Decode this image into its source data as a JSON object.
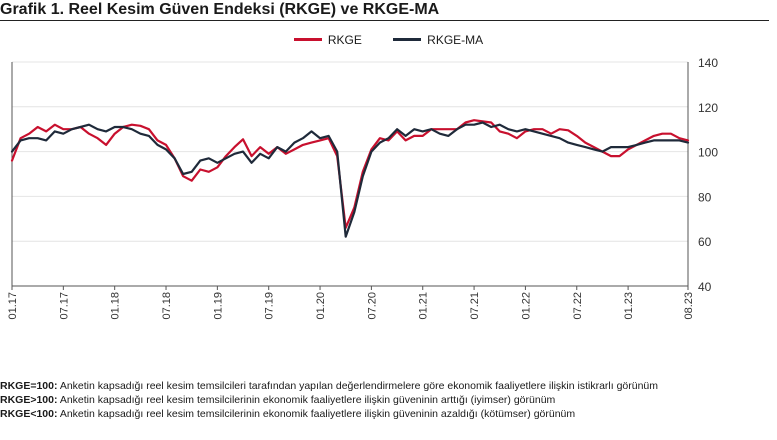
{
  "title": "Grafik 1. Reel Kesim Güven Endeksi (RKGE) ve RKGE-MA",
  "colors": {
    "rkge": "#c8102e",
    "rkge_ma": "#1f2a3a",
    "grid": "#e4e4e4",
    "axis": "#555555"
  },
  "chart_data": {
    "type": "line",
    "title": "Grafik 1. Reel Kesim Güven Endeksi (RKGE) ve RKGE-MA",
    "xlabel": "",
    "ylabel": "",
    "ylim": [
      40,
      140
    ],
    "yticks": [
      40,
      60,
      80,
      100,
      120,
      140
    ],
    "grid": true,
    "legend_position": "top-center",
    "x_tick_labels": [
      "01.17",
      "07.17",
      "01.18",
      "07.18",
      "01.19",
      "07.19",
      "01.20",
      "07.20",
      "01.21",
      "07.21",
      "01.22",
      "07.22",
      "01.23",
      "08.23"
    ],
    "x": [
      "01.17",
      "02.17",
      "03.17",
      "04.17",
      "05.17",
      "06.17",
      "07.17",
      "08.17",
      "09.17",
      "10.17",
      "11.17",
      "12.17",
      "01.18",
      "02.18",
      "03.18",
      "04.18",
      "05.18",
      "06.18",
      "07.18",
      "08.18",
      "09.18",
      "10.18",
      "11.18",
      "12.18",
      "01.19",
      "02.19",
      "03.19",
      "04.19",
      "05.19",
      "06.19",
      "07.19",
      "08.19",
      "09.19",
      "10.19",
      "11.19",
      "12.19",
      "01.20",
      "02.20",
      "03.20",
      "04.20",
      "05.20",
      "06.20",
      "07.20",
      "08.20",
      "09.20",
      "10.20",
      "11.20",
      "12.20",
      "01.21",
      "02.21",
      "03.21",
      "04.21",
      "05.21",
      "06.21",
      "07.21",
      "08.21",
      "09.21",
      "10.21",
      "11.21",
      "12.21",
      "01.22",
      "02.22",
      "03.22",
      "04.22",
      "05.22",
      "06.22",
      "07.22",
      "08.22",
      "09.22",
      "10.22",
      "11.22",
      "12.22",
      "01.23",
      "02.23",
      "03.23",
      "04.23",
      "05.23",
      "06.23",
      "07.23",
      "08.23"
    ],
    "series": [
      {
        "name": "RKGE",
        "values": [
          96,
          106,
          108,
          111,
          109,
          112,
          110,
          110,
          111,
          108,
          106,
          103,
          108,
          111,
          112,
          111.5,
          110,
          105,
          103,
          97,
          89,
          87,
          92,
          91,
          93,
          98,
          102,
          105.5,
          98,
          102,
          99,
          102,
          99,
          101,
          103,
          104,
          105,
          106,
          98,
          66,
          75,
          91,
          101,
          106,
          105,
          109,
          105,
          107,
          107,
          110,
          110,
          110,
          110,
          113,
          114,
          113.5,
          113,
          109,
          108,
          106,
          109,
          110,
          110,
          108,
          110,
          109.5,
          107,
          104,
          102,
          100,
          98,
          98,
          101,
          103,
          105,
          107,
          108,
          108,
          106,
          105
        ]
      },
      {
        "name": "RKGE-MA",
        "values": [
          100,
          105,
          106,
          106,
          105,
          109,
          108,
          110,
          111,
          112,
          110,
          109,
          111,
          111,
          110,
          108,
          107,
          103,
          101,
          97,
          90,
          91,
          96,
          97,
          95,
          97,
          99,
          100,
          95,
          99,
          97,
          102,
          100,
          104,
          106,
          109,
          106,
          107,
          100,
          62,
          73,
          89,
          100,
          104,
          106,
          110,
          107,
          110,
          109,
          110,
          108,
          107,
          110,
          112,
          112,
          113,
          111,
          112,
          110,
          109,
          110,
          109,
          108,
          107,
          106,
          104,
          103,
          102,
          101,
          100,
          102,
          102,
          102,
          103,
          104,
          105,
          105,
          105,
          105,
          104
        ]
      }
    ]
  },
  "notes": [
    {
      "label": "RKGE=100:",
      "text": " Anketin kapsadığı reel kesim temsilcileri tarafından yapılan değerlendirmelere göre ekonomik faaliyetlere ilişkin istikrarlı görünüm"
    },
    {
      "label": "RKGE>100:",
      "text": " Anketin kapsadığı reel kesim temsilcilerinin ekonomik faaliyetlere ilişkin güveninin arttığı (iyimser) görünüm"
    },
    {
      "label": "RKGE<100:",
      "text": " Anketin kapsadığı reel kesim temsilcilerinin ekonomik faaliyetlere ilişkin güveninin azaldığı (kötümser) görünüm"
    }
  ]
}
